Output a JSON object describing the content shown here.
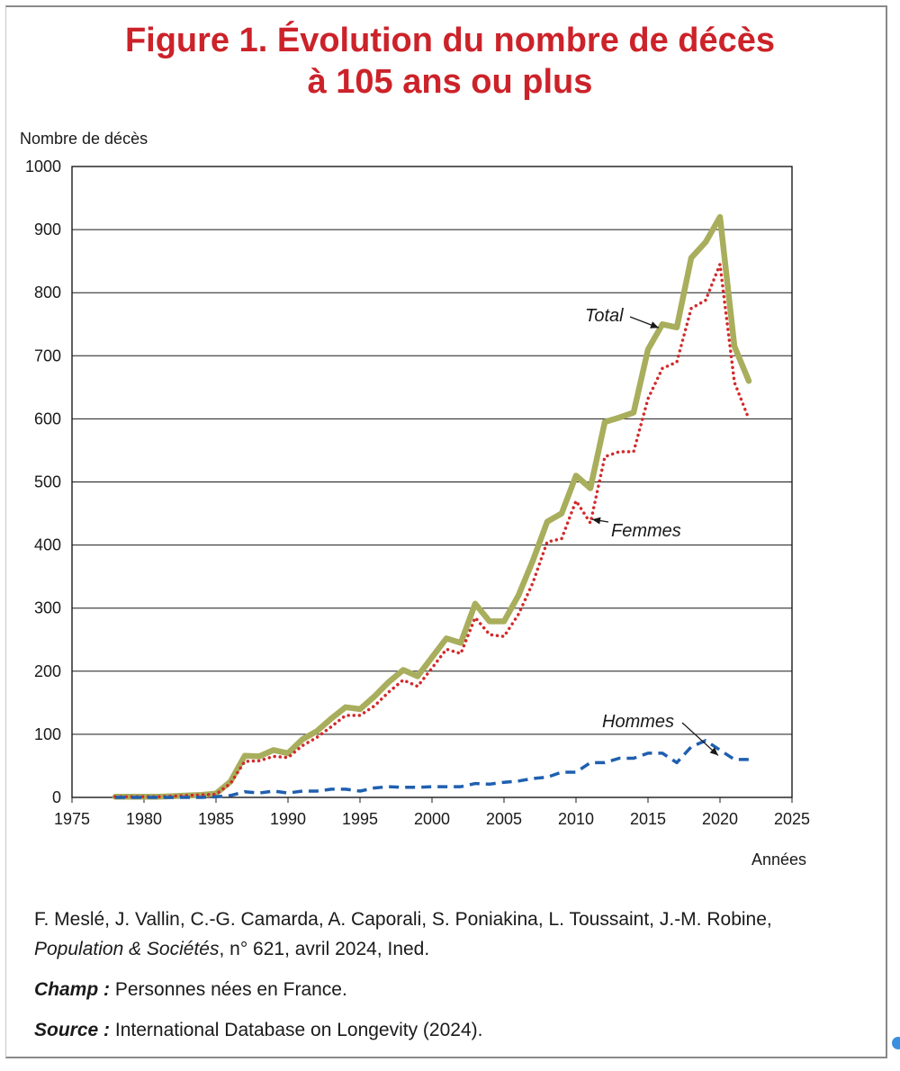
{
  "title": {
    "line1": "Figure 1. Évolution du nombre de décès",
    "line2": "à 105 ans ou plus"
  },
  "chart_data": {
    "type": "line",
    "title": "Figure 1. Évolution du nombre de décès à 105 ans ou plus",
    "ylabel": "Nombre de décès",
    "xlabel": "Années",
    "xlim": [
      1975,
      2025
    ],
    "ylim": [
      0,
      1000
    ],
    "x_ticks": [
      1975,
      1980,
      1985,
      1990,
      1995,
      2000,
      2005,
      2010,
      2015,
      2020,
      2025
    ],
    "y_ticks": [
      0,
      100,
      200,
      300,
      400,
      500,
      600,
      700,
      800,
      900,
      1000
    ],
    "grid": "horizontal",
    "series": [
      {
        "name": "Total",
        "color": "#a8ae5c",
        "style": "solid",
        "x": [
          1978,
          1979,
          1980,
          1981,
          1982,
          1983,
          1984,
          1985,
          1986,
          1987,
          1988,
          1989,
          1990,
          1991,
          1992,
          1993,
          1994,
          1995,
          1996,
          1997,
          1998,
          1999,
          2000,
          2001,
          2002,
          2003,
          2004,
          2005,
          2006,
          2007,
          2008,
          2009,
          2010,
          2011,
          2012,
          2013,
          2014,
          2015,
          2016,
          2017,
          2018,
          2019,
          2020,
          2021,
          2022
        ],
        "y": [
          1,
          1,
          1,
          1,
          2,
          3,
          4,
          6,
          25,
          66,
          65,
          75,
          70,
          92,
          105,
          125,
          143,
          140,
          160,
          183,
          202,
          192,
          222,
          252,
          245,
          307,
          279,
          279,
          320,
          375,
          437,
          450,
          510,
          490,
          595,
          602,
          610,
          710,
          750,
          745,
          855,
          880,
          920,
          715,
          660
        ]
      },
      {
        "name": "Femmes",
        "color": "#d22a2a",
        "style": "dotted",
        "x": [
          1978,
          1979,
          1980,
          1981,
          1982,
          1983,
          1984,
          1985,
          1986,
          1987,
          1988,
          1989,
          1990,
          1991,
          1992,
          1993,
          1994,
          1995,
          1996,
          1997,
          1998,
          1999,
          2000,
          2001,
          2002,
          2003,
          2004,
          2005,
          2006,
          2007,
          2008,
          2009,
          2010,
          2011,
          2012,
          2013,
          2014,
          2015,
          2016,
          2017,
          2018,
          2019,
          2020,
          2021,
          2022
        ],
        "y": [
          1,
          1,
          1,
          1,
          2,
          3,
          4,
          5,
          22,
          57,
          58,
          65,
          63,
          82,
          95,
          112,
          130,
          130,
          145,
          167,
          186,
          176,
          205,
          235,
          228,
          285,
          258,
          255,
          290,
          340,
          405,
          410,
          470,
          435,
          540,
          548,
          548,
          632,
          680,
          690,
          775,
          788,
          845,
          658,
          600
        ]
      },
      {
        "name": "Hommes",
        "color": "#1f5fb0",
        "style": "dashed",
        "x": [
          1978,
          1979,
          1980,
          1981,
          1982,
          1983,
          1984,
          1985,
          1986,
          1987,
          1988,
          1989,
          1990,
          1991,
          1992,
          1993,
          1994,
          1995,
          1996,
          1997,
          1998,
          1999,
          2000,
          2001,
          2002,
          2003,
          2004,
          2005,
          2006,
          2007,
          2008,
          2009,
          2010,
          2011,
          2012,
          2013,
          2014,
          2015,
          2016,
          2017,
          2018,
          2019,
          2020,
          2021,
          2022
        ],
        "y": [
          0,
          0,
          0,
          0,
          0,
          0,
          0,
          1,
          3,
          9,
          7,
          10,
          7,
          10,
          10,
          13,
          13,
          10,
          15,
          17,
          16,
          16,
          17,
          17,
          17,
          22,
          21,
          24,
          26,
          30,
          32,
          40,
          40,
          55,
          55,
          62,
          62,
          70,
          70,
          55,
          80,
          90,
          75,
          60,
          60
        ]
      }
    ],
    "annotations": [
      {
        "text": "Total",
        "target": "Total",
        "at_year": 2016
      },
      {
        "text": "Femmes",
        "target": "Femmes",
        "at_year": 2011
      },
      {
        "text": "Hommes",
        "target": "Hommes",
        "at_year": 2020
      }
    ]
  },
  "footer": {
    "authors": "F. Meslé, J. Vallin, C.-G. Camarda, A. Caporali, S. Poniakina, L. Toussaint, J.-M. Robine,",
    "journal": "Population & Sociétés",
    "issue": ", n° 621, avril 2024, Ined.",
    "champ_label": "Champ :",
    "champ_text": " Personnes nées en France.",
    "source_label": "Source :",
    "source_text": " International Database on Longevity (2024)."
  }
}
